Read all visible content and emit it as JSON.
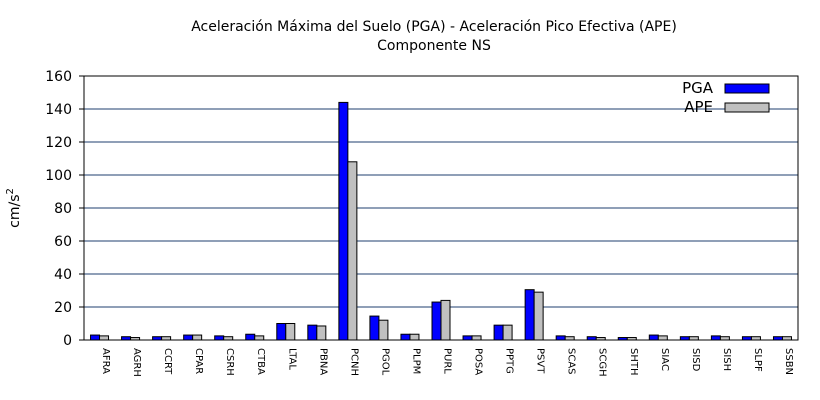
{
  "chart_data": {
    "type": "bar",
    "title": "Aceleración Máxima del Suelo (PGA) -  Aceleración Pico Efectiva (APE)",
    "subtitle": "Componente NS",
    "ylabel_base": "cm/s",
    "ylabel_exp": "2",
    "xlabel": "",
    "ylim": [
      0,
      160
    ],
    "yticks": [
      0,
      20,
      40,
      60,
      80,
      100,
      120,
      140,
      160
    ],
    "grid": true,
    "legend_position": "top-right",
    "categories": [
      "AFRA",
      "AGRH",
      "CCRT",
      "CPAR",
      "CSRH",
      "CTBA",
      "LTAL",
      "PBNA",
      "PCNH",
      "PGOL",
      "PLPM",
      "PURL",
      "POSA",
      "PPTG",
      "PSVT",
      "SCAS",
      "SCGH",
      "SHTH",
      "SIAC",
      "SISD",
      "SISH",
      "SLPF",
      "SSBN"
    ],
    "series": [
      {
        "name": "PGA",
        "color": "#0000ff",
        "values": [
          3,
          2,
          2,
          3,
          2.5,
          3.5,
          10,
          9,
          144,
          14.5,
          3.5,
          23,
          2.5,
          9,
          30.5,
          2.5,
          2,
          1.5,
          3,
          2,
          2.5,
          2,
          2
        ]
      },
      {
        "name": "APE",
        "color": "#c0c0c0",
        "values": [
          2.5,
          1.5,
          2,
          3,
          2,
          2.5,
          10,
          8.5,
          108,
          12,
          3.5,
          24,
          2.5,
          9,
          29,
          2,
          1.5,
          1.5,
          2.5,
          2,
          2,
          2,
          2
        ]
      }
    ]
  }
}
